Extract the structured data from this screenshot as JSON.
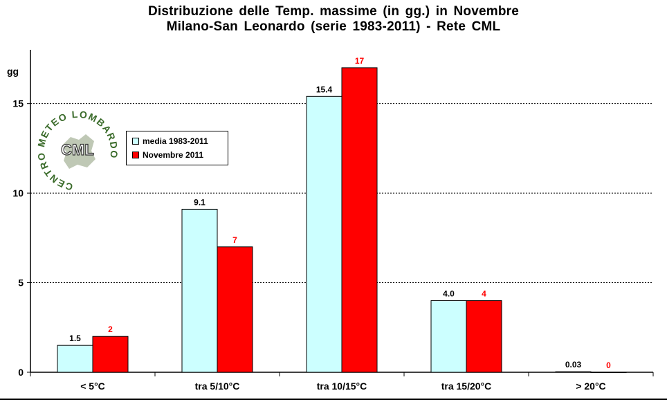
{
  "chart_data": {
    "type": "bar",
    "title": "Distribuzione delle Temp. massime (in gg.) in Novembre",
    "subtitle": "Milano-San Leonardo (serie 1983-2011) - Rete CML",
    "ylabel": "gg",
    "ylim": [
      0,
      18
    ],
    "yticks": [
      0,
      5,
      10,
      15
    ],
    "grid": true,
    "legend_placement": "top-left",
    "categories": [
      "< 5°C",
      "tra 5/10°C",
      "tra 10/15°C",
      "tra 15/20°C",
      "> 20°C"
    ],
    "series": [
      {
        "name": "media 1983-2011",
        "values": [
          1.5,
          9.1,
          15.4,
          4.0,
          0.03
        ],
        "labels": [
          "1.5",
          "9.1",
          "15.4",
          "4.0",
          "0.03"
        ],
        "color": "#ccffff",
        "label_color": "#000000"
      },
      {
        "name": "Novembre 2011",
        "values": [
          2,
          7,
          17,
          4,
          0
        ],
        "labels": [
          "2",
          "7",
          "17",
          "4",
          "0"
        ],
        "color": "#ff0000",
        "label_color": "#ff0000"
      }
    ]
  },
  "logo": {
    "text": "CML",
    "ring_text": "CENTRO METEO LOMBARDO",
    "color": "#3a6b2a"
  }
}
